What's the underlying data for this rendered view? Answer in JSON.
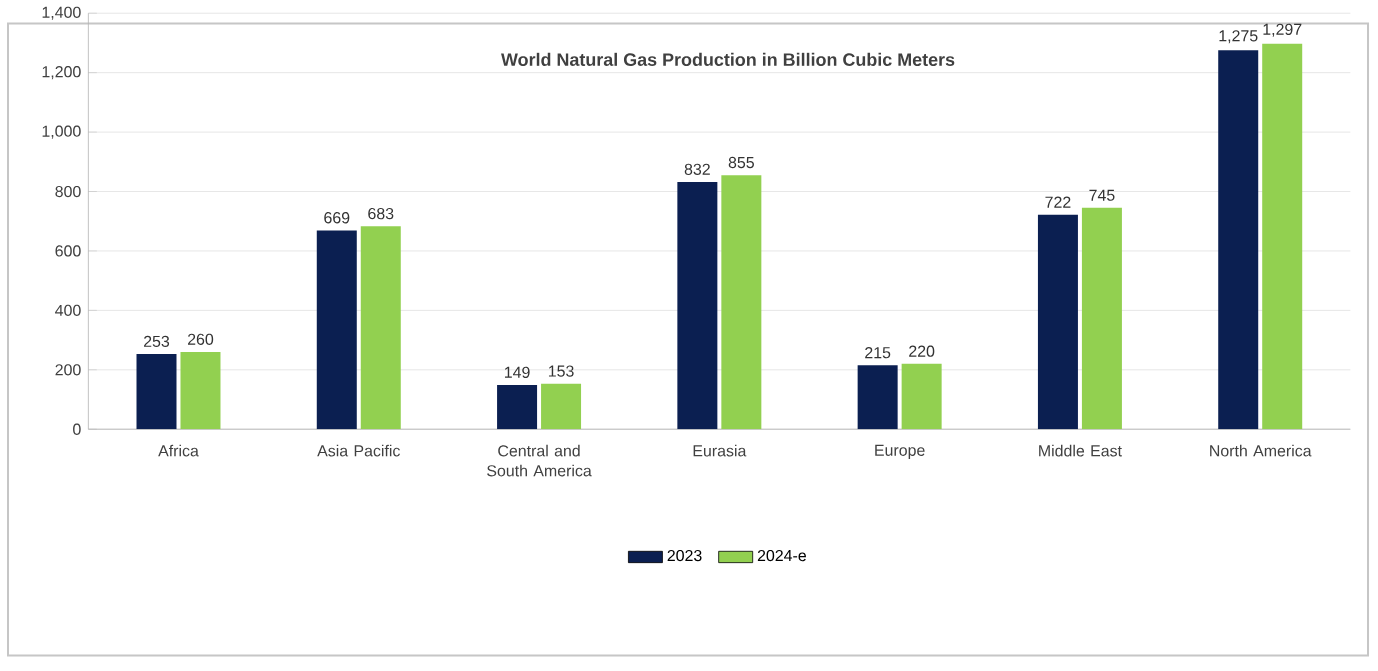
{
  "chart_data": {
    "type": "bar",
    "title": "World Natural Gas Production in Billion Cubic Meters",
    "categories": [
      "Africa",
      "Asia Pacific",
      "Central and South America",
      "Eurasia",
      "Europe",
      "Middle East",
      "North America"
    ],
    "series": [
      {
        "name": "2023",
        "color": "#0b1f51",
        "values": [
          253,
          669,
          149,
          832,
          215,
          722,
          1275
        ],
        "value_labels": [
          "253",
          "669",
          "149",
          "832",
          "215",
          "722",
          "1,275"
        ]
      },
      {
        "name": "2024-e",
        "color": "#92d050",
        "values": [
          260,
          683,
          153,
          855,
          220,
          745,
          1297
        ],
        "value_labels": [
          "260",
          "683",
          "153",
          "855",
          "220",
          "745",
          "1,297"
        ]
      }
    ],
    "ylim": [
      0,
      1400
    ],
    "yticks": [
      0,
      {
        "value": 200,
        "label": "200"
      },
      {
        "value": 400,
        "label": "400"
      },
      {
        "value": 600,
        "label": "600"
      },
      {
        "value": 800,
        "label": "800"
      },
      {
        "value": 1000,
        "label": "1,000"
      },
      {
        "value": 1200,
        "label": "1,200"
      },
      {
        "value": 1400,
        "label": "1,400"
      }
    ],
    "grid": "y",
    "legend": "bottom"
  }
}
